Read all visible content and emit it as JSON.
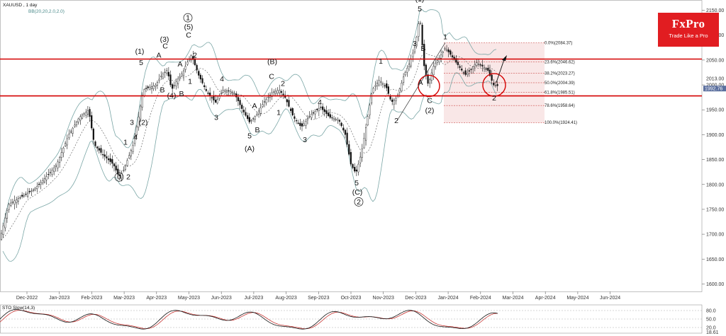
{
  "header": {
    "symbol": "XAUUSD , 1 day",
    "indicator": "BB(20,20,2.0,2.0)"
  },
  "brand": {
    "name": "FxPro",
    "tagline": "Trade Like a Pro"
  },
  "oscillator": {
    "label": "STO Slow(14,3)",
    "levels": [
      "80.0",
      "50.0",
      "20.0"
    ],
    "last": "18.61"
  },
  "price_labels": {
    "marker_top": "2013.00",
    "marker_bottom": "1992.76"
  },
  "colors": {
    "up": "#1a8f2a",
    "down": "#c0201d",
    "resistance": "#d40000",
    "fib_zone": "#f2c9c9",
    "band": "#7aa6a6"
  },
  "chart_data": {
    "type": "candlestick",
    "x_ticks": [
      "Dec-2022",
      "Jan-2023",
      "Feb-2023",
      "Mar-2023",
      "Apr-2023",
      "May-2023",
      "Jun-2023",
      "Jul-2023",
      "Aug-2023",
      "Sep-2023",
      "Oct-2023",
      "Nov-2023",
      "Dec-2023",
      "Jan-2024",
      "Feb-2024",
      "Mar-2024",
      "Apr-2024",
      "May-2024",
      "Jun-2024"
    ],
    "y_ticks": [
      1600,
      1650,
      1700,
      1750,
      1800,
      1850,
      1900,
      1950,
      2000,
      2050,
      2100,
      2150
    ],
    "ylim": [
      1585,
      2165
    ],
    "horizontal_lines": [
      2052,
      1978
    ],
    "fib_levels": [
      {
        "label": "0.0%(2084.37)",
        "price": 2084.37
      },
      {
        "label": "23.6%(2046.62)",
        "price": 2046.62
      },
      {
        "label": "38.2%(2023.27)",
        "price": 2023.27
      },
      {
        "label": "50.0%(2004.39)",
        "price": 2004.39
      },
      {
        "label": "61.8%(1985.51)",
        "price": 1985.51
      },
      {
        "label": "78.6%(1958.64)",
        "price": 1958.64
      },
      {
        "label": "100.0%(1924.41)",
        "price": 1924.41
      }
    ],
    "price_path": [
      [
        0,
        1690
      ],
      [
        12,
        1760
      ],
      [
        30,
        1775
      ],
      [
        48,
        1790
      ],
      [
        62,
        1810
      ],
      [
        80,
        1840
      ],
      [
        97,
        1900
      ],
      [
        112,
        1935
      ],
      [
        125,
        1950
      ],
      [
        133,
        1880
      ],
      [
        145,
        1860
      ],
      [
        160,
        1840
      ],
      [
        168,
        1815
      ],
      [
        175,
        1830
      ],
      [
        180,
        1850
      ],
      [
        188,
        1880
      ],
      [
        196,
        1940
      ],
      [
        202,
        1990
      ],
      [
        210,
        1995
      ],
      [
        220,
        2000
      ],
      [
        228,
        2020
      ],
      [
        236,
        2030
      ],
      [
        242,
        1990
      ],
      [
        250,
        2010
      ],
      [
        258,
        2025
      ],
      [
        264,
        2045
      ],
      [
        270,
        2060
      ],
      [
        280,
        2020
      ],
      [
        292,
        1985
      ],
      [
        304,
        1965
      ],
      [
        315,
        1990
      ],
      [
        330,
        1985
      ],
      [
        342,
        1950
      ],
      [
        352,
        1925
      ],
      [
        362,
        1940
      ],
      [
        372,
        1965
      ],
      [
        384,
        1985
      ],
      [
        394,
        1990
      ],
      [
        402,
        1975
      ],
      [
        414,
        1935
      ],
      [
        425,
        1915
      ],
      [
        438,
        1940
      ],
      [
        452,
        1955
      ],
      [
        465,
        1935
      ],
      [
        478,
        1930
      ],
      [
        487,
        1900
      ],
      [
        495,
        1840
      ],
      [
        502,
        1822
      ],
      [
        510,
        1865
      ],
      [
        518,
        1930
      ],
      [
        525,
        1990
      ],
      [
        535,
        2010
      ],
      [
        545,
        1995
      ],
      [
        552,
        1965
      ],
      [
        560,
        1975
      ],
      [
        570,
        2020
      ],
      [
        578,
        2045
      ],
      [
        586,
        2080
      ],
      [
        592,
        2140
      ],
      [
        598,
        2040
      ],
      [
        604,
        2000
      ],
      [
        612,
        2040
      ],
      [
        620,
        2055
      ],
      [
        628,
        2075
      ],
      [
        636,
        2060
      ],
      [
        646,
        2040
      ],
      [
        656,
        2020
      ],
      [
        664,
        2030
      ],
      [
        672,
        2045
      ],
      [
        680,
        2038
      ],
      [
        688,
        2030
      ],
      [
        696,
        2000
      ],
      [
        702,
        1998
      ]
    ],
    "annotations": [
      {
        "text": "0",
        "x": 168,
        "y": 1810,
        "circled": true
      },
      {
        "text": "2",
        "x": 181,
        "y": 1810
      },
      {
        "text": "1",
        "x": 177,
        "y": 1880
      },
      {
        "text": "3",
        "x": 186,
        "y": 1920
      },
      {
        "text": "4",
        "x": 191,
        "y": 1890
      },
      {
        "text": "(2)",
        "x": 202,
        "y": 1920
      },
      {
        "text": "(1)",
        "x": 197,
        "y": 2063
      },
      {
        "text": "5",
        "x": 199,
        "y": 2040
      },
      {
        "text": "B",
        "x": 229,
        "y": 1985
      },
      {
        "text": "(3)",
        "x": 232,
        "y": 2087
      },
      {
        "text": "C",
        "x": 233,
        "y": 2073
      },
      {
        "text": "A",
        "x": 224,
        "y": 2055
      },
      {
        "text": "A",
        "x": 254,
        "y": 2037
      },
      {
        "text": "(4)",
        "x": 242,
        "y": 1974
      },
      {
        "text": "B",
        "x": 256,
        "y": 1977
      },
      {
        "text": "1",
        "x": 265,
        "y": 2130,
        "circled": true
      },
      {
        "text": "(5)",
        "x": 266,
        "y": 2112
      },
      {
        "text": "C",
        "x": 266,
        "y": 2095
      },
      {
        "text": "2",
        "x": 275,
        "y": 2055
      },
      {
        "text": "1",
        "x": 268,
        "y": 2002
      },
      {
        "text": "3",
        "x": 305,
        "y": 1930
      },
      {
        "text": "4",
        "x": 313,
        "y": 2007
      },
      {
        "text": "A",
        "x": 359,
        "y": 1953
      },
      {
        "text": "5",
        "x": 352,
        "y": 1893
      },
      {
        "text": "B",
        "x": 363,
        "y": 1905
      },
      {
        "text": "(A)",
        "x": 352,
        "y": 1867
      },
      {
        "text": "(B)",
        "x": 384,
        "y": 2042
      },
      {
        "text": "C",
        "x": 383,
        "y": 2012
      },
      {
        "text": "2",
        "x": 399,
        "y": 1998
      },
      {
        "text": "1",
        "x": 393,
        "y": 1940
      },
      {
        "text": "4",
        "x": 451,
        "y": 1960
      },
      {
        "text": "3",
        "x": 430,
        "y": 1885
      },
      {
        "text": "5",
        "x": 503,
        "y": 1798
      },
      {
        "text": "(C)",
        "x": 504,
        "y": 1780
      },
      {
        "text": "2",
        "x": 506,
        "y": 1760,
        "circled": true
      },
      {
        "text": "1",
        "x": 537,
        "y": 2043
      },
      {
        "text": "2",
        "x": 559,
        "y": 1923
      },
      {
        "text": "3",
        "x": 585,
        "y": 2078
      },
      {
        "text": "B",
        "x": 597,
        "y": 2068
      },
      {
        "text": "A",
        "x": 593,
        "y": 2000
      },
      {
        "text": "(1)",
        "x": 592,
        "y": 2168
      },
      {
        "text": "5",
        "x": 592,
        "y": 2148
      },
      {
        "text": "C",
        "x": 606,
        "y": 1964
      },
      {
        "text": "(2)",
        "x": 606,
        "y": 1944
      },
      {
        "text": "1",
        "x": 628,
        "y": 2092
      },
      {
        "text": "2",
        "x": 697,
        "y": 1969
      }
    ]
  }
}
